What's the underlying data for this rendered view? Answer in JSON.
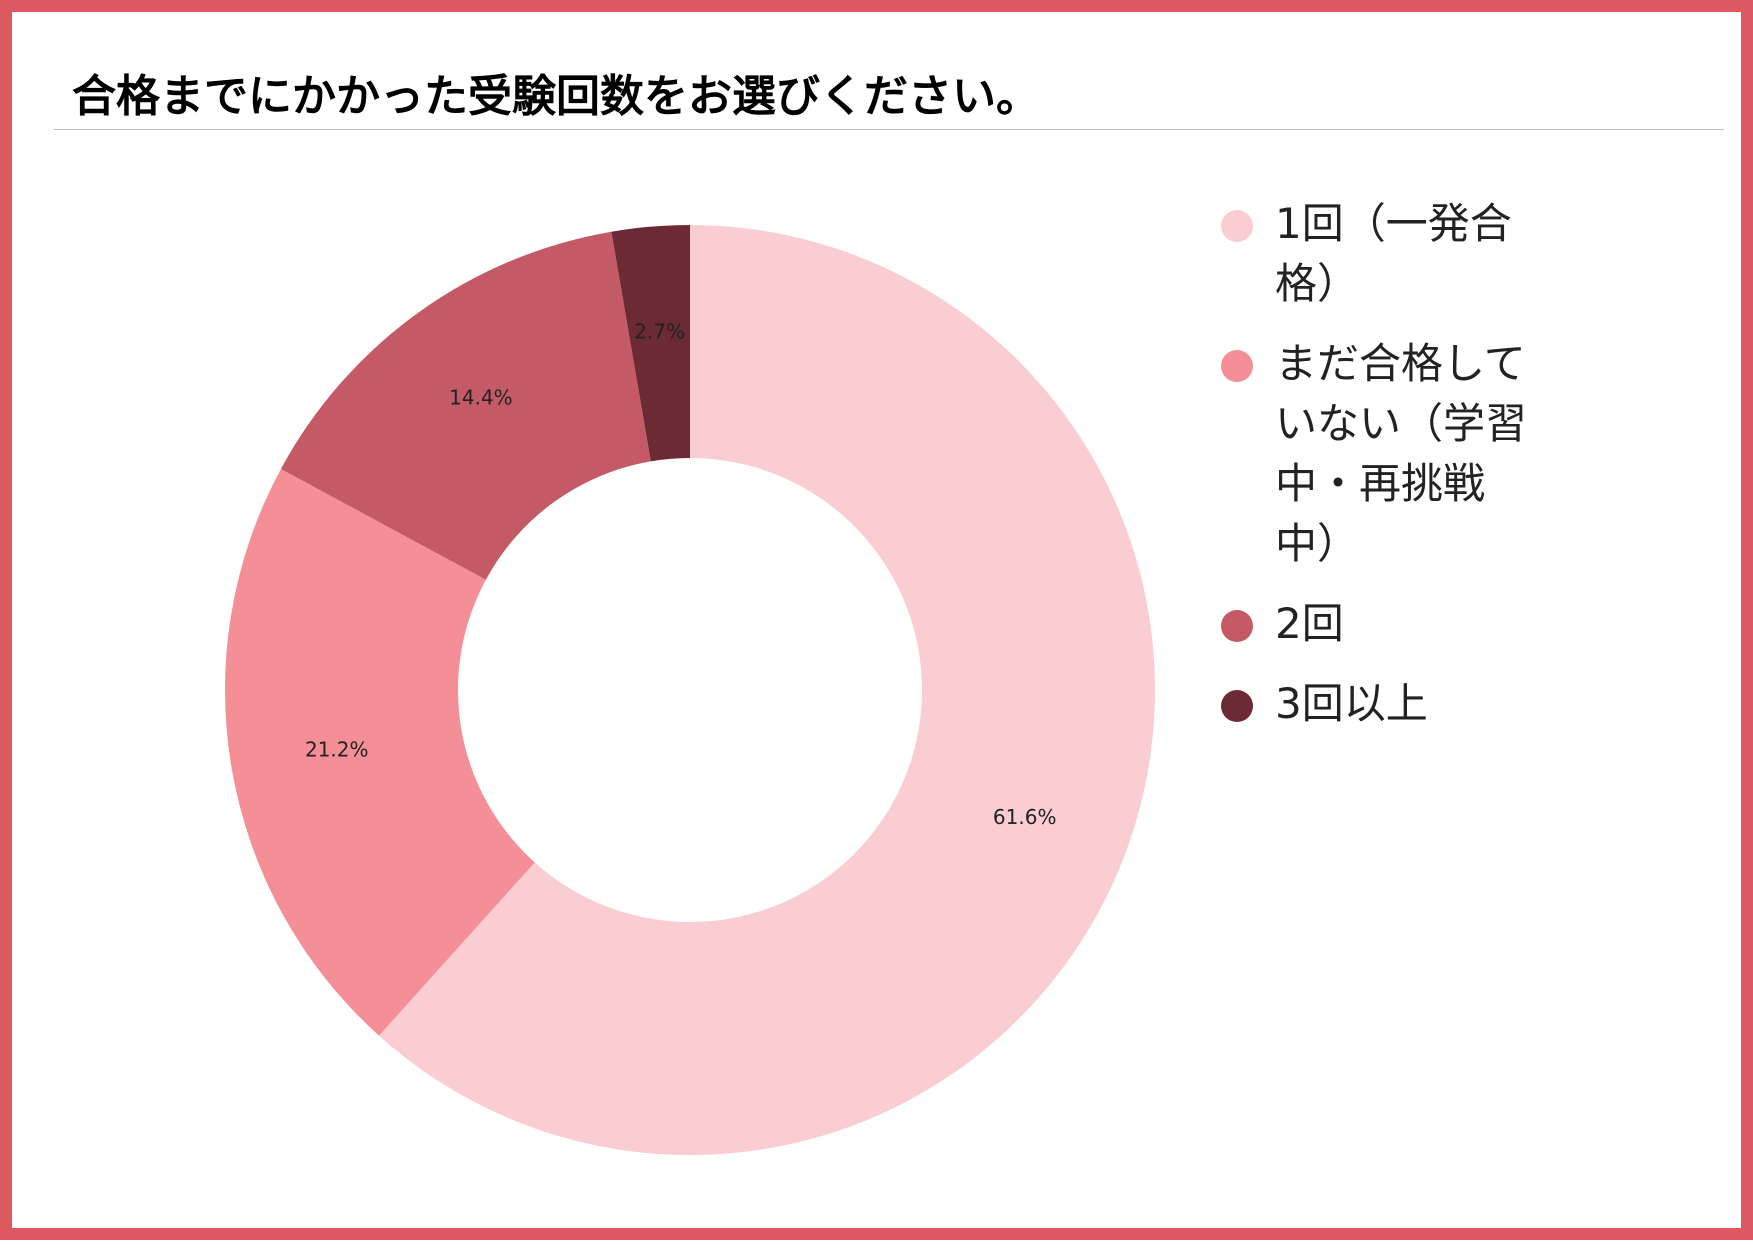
{
  "title": "合格までにかかった受験回数をお選びください。",
  "chart_data": {
    "type": "pie",
    "donut": true,
    "title": "合格までにかかった受験回数をお選びください。",
    "legend_position": "right",
    "categories": [
      "1回（一発合格）",
      "まだ合格していない（学習中・再挑戦中）",
      "2回",
      "3回以上"
    ],
    "values": [
      61.6,
      21.2,
      14.4,
      2.7
    ],
    "data_labels": [
      "61.6%",
      "21.2%",
      "14.4%",
      "2.7%"
    ],
    "colors": [
      "#f9cdd2",
      "#f48f98",
      "#c45a65",
      "#6b2a34"
    ]
  },
  "legend": [
    {
      "label": "1回（一発合格）",
      "color": "#f9cdd2"
    },
    {
      "label": "まだ合格していない（学習中・再挑戦中）",
      "color": "#f48f98"
    },
    {
      "label": "2回",
      "color": "#c45a65"
    },
    {
      "label": "3回以上",
      "color": "#6b2a34"
    }
  ]
}
